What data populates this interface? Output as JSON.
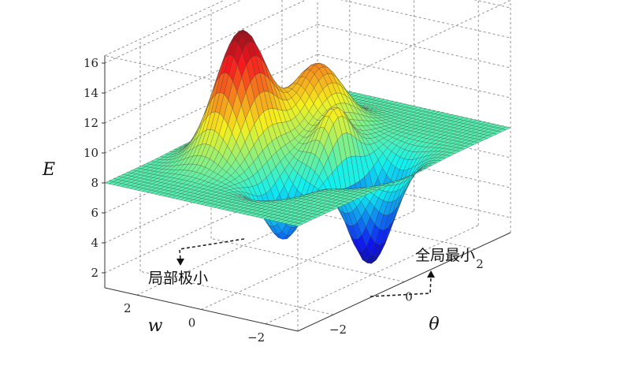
{
  "chart_data": {
    "type": "surface",
    "zlabel": "E",
    "xlabel": "θ",
    "ylabel": "w",
    "zticks": [
      "2",
      "4",
      "6",
      "8",
      "10",
      "12",
      "14",
      "16"
    ],
    "xticks": [
      "−2",
      "0",
      "2"
    ],
    "yticks": [
      "2",
      "0",
      "−2"
    ],
    "zlim": [
      1,
      16.5
    ],
    "xlim": [
      -3,
      3
    ],
    "ylim": [
      -3,
      3
    ],
    "baseline": 8,
    "peaks": [
      {
        "theta": -0.6,
        "w": 1.4,
        "E": 16.3
      },
      {
        "theta": 1.0,
        "w": 0.8,
        "E": 12.6
      },
      {
        "theta": 0.3,
        "w": -0.6,
        "E": 11.7
      }
    ],
    "minima": [
      {
        "theta": -1.2,
        "w": -0.6,
        "E": 4.0,
        "label": "局部极小"
      },
      {
        "theta": 0.3,
        "w": -1.6,
        "E": 1.1,
        "label": "全局最小"
      }
    ],
    "grid": true,
    "colormap": "jet"
  }
}
